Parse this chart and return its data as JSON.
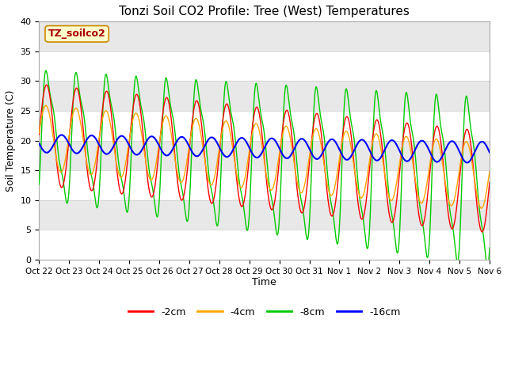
{
  "title": "Tonzi Soil CO2 Profile: Tree (West) Temperatures",
  "ylabel": "Soil Temperature (C)",
  "xlabel": "Time",
  "ylim": [
    0,
    40
  ],
  "legend_label": "TZ_soilco2",
  "legend_entries": [
    "-2cm",
    "-4cm",
    "-8cm",
    "-16cm"
  ],
  "line_colors": [
    "#ff0000",
    "#ffa500",
    "#00cc00",
    "#0000ff"
  ],
  "xtick_labels": [
    "Oct 22",
    "Oct 23",
    "Oct 24",
    "Oct 25",
    "Oct 26",
    "Oct 27",
    "Oct 28",
    "Oct 29",
    "Oct 30",
    "Oct 31",
    "Nov 1",
    "Nov 2",
    "Nov 3",
    "Nov 4",
    "Nov 5",
    "Nov 6"
  ],
  "background_color": "#e8e8e8",
  "yticks": [
    0,
    5,
    10,
    15,
    20,
    25,
    30,
    35,
    40
  ],
  "figsize": [
    6.4,
    4.8
  ],
  "dpi": 100
}
